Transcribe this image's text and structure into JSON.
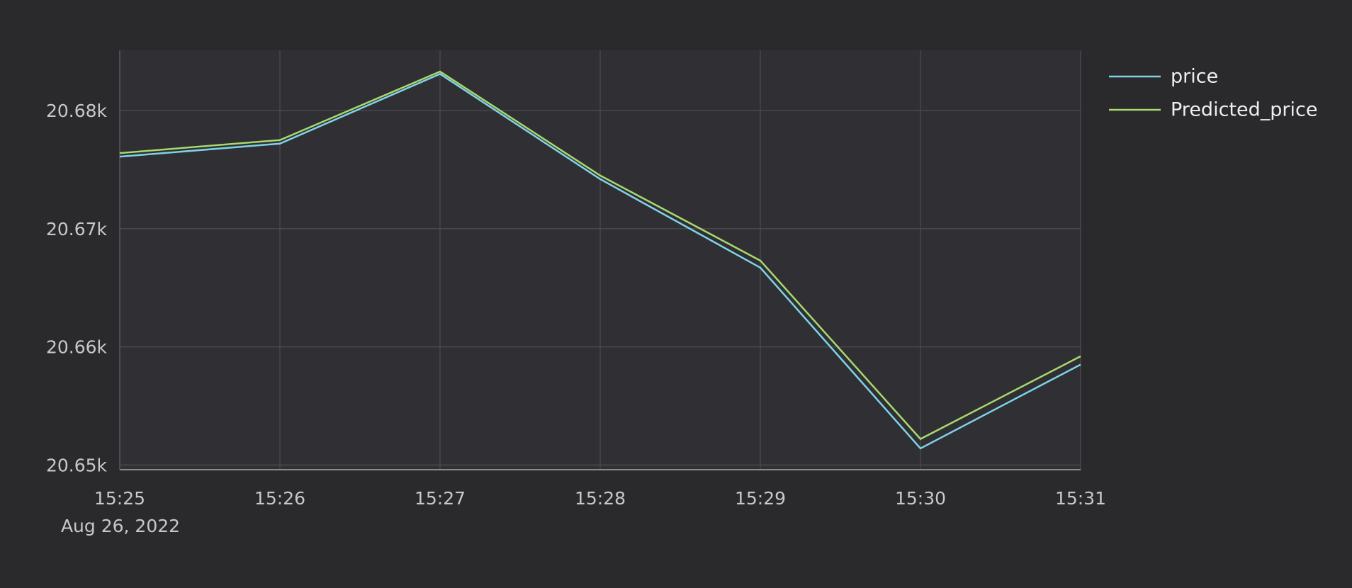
{
  "chart_data": {
    "type": "line",
    "categories": [
      "15:25",
      "15:26",
      "15:27",
      "15:28",
      "15:29",
      "15:30",
      "15:31"
    ],
    "date_label": "Aug 26, 2022",
    "series": [
      {
        "name": "price",
        "color": "#7fd3e8",
        "values": [
          20676.1,
          20677.2,
          20683.1,
          20674.2,
          20666.7,
          20651.4,
          20658.5
        ]
      },
      {
        "name": "Predicted_price",
        "color": "#a8d86e",
        "values": [
          20676.4,
          20677.5,
          20683.3,
          20674.5,
          20667.3,
          20652.2,
          20659.2
        ]
      }
    ],
    "ylim": [
      20649.6,
      20685.1
    ],
    "yticks": [
      {
        "value": 20650,
        "label": "20.65k"
      },
      {
        "value": 20660,
        "label": "20.66k"
      },
      {
        "value": 20670,
        "label": "20.67k"
      },
      {
        "value": 20680,
        "label": "20.68k"
      }
    ],
    "grid": true,
    "legend": "right"
  }
}
